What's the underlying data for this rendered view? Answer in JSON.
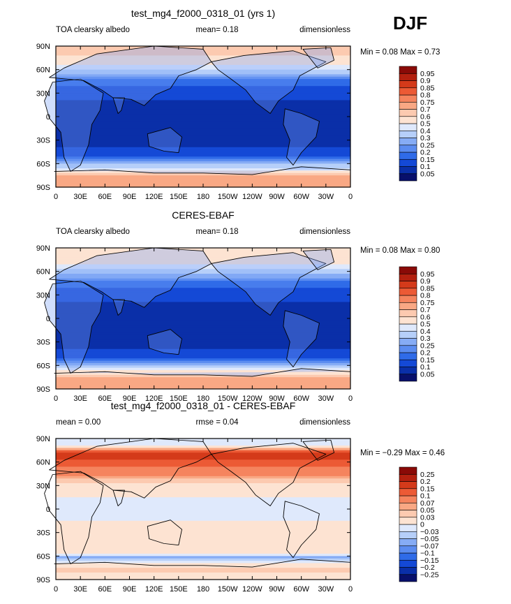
{
  "season": "DJF",
  "panels": [
    {
      "title": "test_mg4_f2000_0318_01 (yrs 1)",
      "left_label": "TOA clearsky albedo",
      "center_label": "mean=   0.18",
      "right_label": "dimensionless",
      "stats": "Min =   0.08 Max =   0.73"
    },
    {
      "title": "CERES-EBAF",
      "left_label": "TOA clearsky albedo",
      "center_label": "mean=   0.18",
      "right_label": "dimensionless",
      "stats": "Min =   0.08 Max =   0.80"
    },
    {
      "title": "test_mg4_f2000_0318_01 - CERES-EBAF",
      "left_label": "mean =   0.00",
      "center_label": "rmse =   0.04",
      "right_label": "dimensionless",
      "stats": "Min = −0.29 Max =   0.46"
    }
  ],
  "axes": {
    "lon_ticks": [
      "0",
      "30E",
      "60E",
      "90E",
      "120E",
      "150E",
      "180",
      "150W",
      "120W",
      "90W",
      "60W",
      "30W",
      "0"
    ],
    "lat_ticks": [
      "90N",
      "60N",
      "30N",
      "0",
      "30S",
      "60S",
      "90S"
    ]
  },
  "colors": {
    "abs": [
      "#08106b",
      "#0a2fa8",
      "#1449d6",
      "#2f6be8",
      "#5b8cf0",
      "#86acf5",
      "#b6cff9",
      "#dfe9fc",
      "#fde3d2",
      "#fccab0",
      "#f9a884",
      "#f5845e",
      "#ec5a35",
      "#d43a1a",
      "#b3200f",
      "#8a0a07"
    ],
    "diff": [
      "#08106b",
      "#0a2fa8",
      "#1449d6",
      "#2f6be8",
      "#5b8cf0",
      "#86acf5",
      "#b6cff9",
      "#dfe9fc",
      "#fde3d2",
      "#fccab0",
      "#f9a884",
      "#f5845e",
      "#ec5a35",
      "#d43a1a",
      "#b3200f",
      "#8a0a07"
    ]
  },
  "chart_data": [
    {
      "type": "heatmap",
      "title": "test_mg4_f2000_0318_01 (yrs 1)",
      "xlim": [
        0,
        360
      ],
      "ylim": [
        -90,
        90
      ],
      "zonal_mean_profile": {
        "lat": [
          -90,
          -75,
          -62,
          -50,
          -35,
          -15,
          0,
          15,
          30,
          45,
          55,
          68,
          80,
          90
        ],
        "value": [
          0.72,
          0.7,
          0.32,
          0.15,
          0.08,
          0.08,
          0.08,
          0.09,
          0.12,
          0.18,
          0.3,
          0.55,
          0.62,
          0.6
        ]
      },
      "colorbar": {
        "levels": [
          "0.05",
          "0.1",
          "0.15",
          "0.2",
          "0.25",
          "0.3",
          "0.4",
          "0.5",
          "0.6",
          "0.7",
          "0.75",
          "0.8",
          "0.85",
          "0.9",
          "0.95"
        ]
      },
      "min": 0.08,
      "max": 0.73,
      "mean": 0.18
    },
    {
      "type": "heatmap",
      "title": "CERES-EBAF",
      "xlim": [
        0,
        360
      ],
      "ylim": [
        -90,
        90
      ],
      "zonal_mean_profile": {
        "lat": [
          -90,
          -75,
          -62,
          -50,
          -35,
          -15,
          0,
          15,
          30,
          45,
          55,
          68,
          80,
          90
        ],
        "value": [
          0.75,
          0.72,
          0.35,
          0.15,
          0.08,
          0.08,
          0.08,
          0.09,
          0.12,
          0.18,
          0.28,
          0.5,
          0.6,
          0.6
        ]
      },
      "colorbar": {
        "levels": [
          "0.05",
          "0.1",
          "0.15",
          "0.2",
          "0.25",
          "0.3",
          "0.4",
          "0.5",
          "0.6",
          "0.7",
          "0.75",
          "0.8",
          "0.85",
          "0.9",
          "0.95"
        ]
      },
      "min": 0.08,
      "max": 0.8,
      "mean": 0.18
    },
    {
      "type": "heatmap",
      "title": "test_mg4_f2000_0318_01 - CERES-EBAF",
      "xlim": [
        0,
        360
      ],
      "ylim": [
        -90,
        90
      ],
      "zonal_mean_profile": {
        "lat": [
          -90,
          -75,
          -62,
          -55,
          -40,
          -15,
          0,
          15,
          30,
          45,
          60,
          70,
          80,
          90
        ],
        "value": [
          0.02,
          0.04,
          -0.06,
          0.02,
          0.01,
          0.0,
          -0.02,
          0.0,
          0.01,
          0.08,
          0.12,
          0.2,
          0.0,
          0.0
        ]
      },
      "colorbar": {
        "levels": [
          "−0.25",
          "−0.2",
          "−0.15",
          "−0.1",
          "−0.07",
          "−0.05",
          "−0.03",
          "0",
          "0.03",
          "0.05",
          "0.07",
          "0.1",
          "0.15",
          "0.2",
          "0.25"
        ]
      },
      "min": -0.29,
      "max": 0.46,
      "mean": 0.0,
      "rmse": 0.04
    }
  ]
}
